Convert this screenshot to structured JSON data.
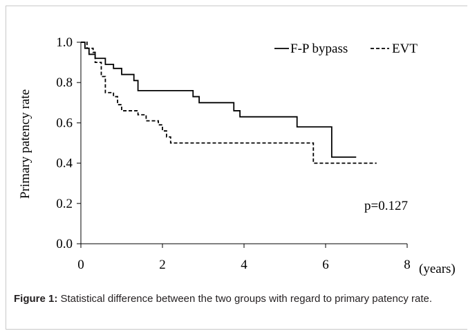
{
  "chart_data": {
    "type": "line",
    "step": true,
    "xlabel": "",
    "x_unit_label": "(years)",
    "ylabel": "Primary patency rate",
    "xlim": [
      0,
      8
    ],
    "ylim": [
      0,
      1.0
    ],
    "x_ticks": [
      "0",
      "2",
      "4",
      "6",
      "8"
    ],
    "y_ticks": [
      "0.0",
      "0.2",
      "0.4",
      "0.6",
      "0.8",
      "1.0"
    ],
    "grid": false,
    "legend_position": "top-right",
    "series": [
      {
        "name": "F-P bypass",
        "style": "solid",
        "x": [
          0,
          0.1,
          0.2,
          0.35,
          0.6,
          0.8,
          1.0,
          1.3,
          1.4,
          2.75,
          2.9,
          3.75,
          3.9,
          5.3,
          6.15,
          6.75
        ],
        "y": [
          1.0,
          0.97,
          0.94,
          0.92,
          0.89,
          0.87,
          0.84,
          0.81,
          0.76,
          0.73,
          0.7,
          0.66,
          0.63,
          0.58,
          0.43,
          0.43
        ]
      },
      {
        "name": "EVT",
        "style": "dashed",
        "x": [
          0,
          0.15,
          0.3,
          0.35,
          0.5,
          0.6,
          0.8,
          0.9,
          1.0,
          1.4,
          1.6,
          1.9,
          2.0,
          2.1,
          2.2,
          5.7,
          7.25
        ],
        "y": [
          1.0,
          0.97,
          0.95,
          0.9,
          0.83,
          0.75,
          0.73,
          0.69,
          0.66,
          0.64,
          0.61,
          0.59,
          0.56,
          0.53,
          0.5,
          0.4,
          0.4
        ]
      }
    ],
    "annotation": "p=0.127"
  },
  "caption": {
    "label": "Figure 1:",
    "text": " Statistical difference between the two groups with regard to primary patency rate."
  },
  "colors": {
    "line": "#000000",
    "frame": "#c8c8c8"
  }
}
